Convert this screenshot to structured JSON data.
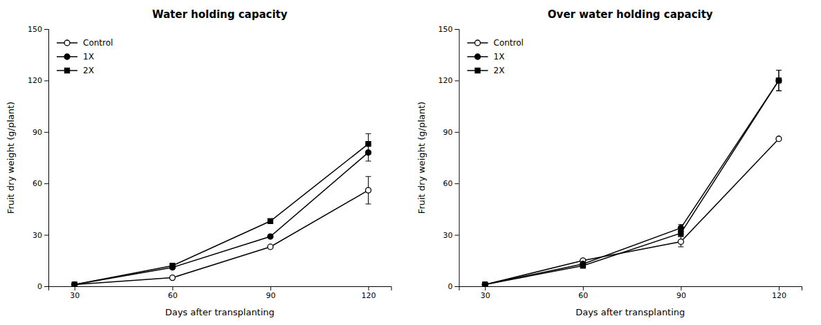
{
  "chart_data": [
    {
      "type": "line",
      "title": "Water holding capacity",
      "xlabel": "Days after transplanting",
      "ylabel": "Fruit dry weight (g/plant)",
      "x": [
        30,
        60,
        90,
        120
      ],
      "xlim": [
        22,
        127
      ],
      "xticks": [
        30,
        60,
        90,
        120
      ],
      "ylim": [
        0,
        150
      ],
      "yticks": [
        0,
        30,
        60,
        90,
        120,
        150
      ],
      "grid": false,
      "legend": "upper left",
      "series": [
        {
          "name": "Control",
          "color": "black",
          "marker": "circle-open",
          "line_style": "solid",
          "values": [
            1,
            5,
            23,
            56
          ],
          "yerr": [
            0,
            0,
            0,
            8
          ]
        },
        {
          "name": "1X",
          "color": "black",
          "marker": "circle",
          "line_style": "solid",
          "values": [
            1,
            11,
            29,
            78
          ],
          "yerr": [
            0,
            0,
            0,
            5
          ]
        },
        {
          "name": "2X",
          "color": "black",
          "marker": "square",
          "line_style": "solid",
          "values": [
            1,
            12,
            38,
            83
          ],
          "yerr": [
            0,
            0,
            0,
            6
          ]
        }
      ]
    },
    {
      "type": "line",
      "title": "Over water holding capacity",
      "xlabel": "Days after transplanting",
      "ylabel": "Fruit dry weight (g/plant)",
      "x": [
        30,
        60,
        90,
        120
      ],
      "xlim": [
        22,
        127
      ],
      "xticks": [
        30,
        60,
        90,
        120
      ],
      "ylim": [
        0,
        150
      ],
      "yticks": [
        0,
        30,
        60,
        90,
        120,
        150
      ],
      "grid": false,
      "legend": "upper left",
      "series": [
        {
          "name": "Control",
          "color": "black",
          "marker": "circle-open",
          "line_style": "solid",
          "values": [
            1,
            15,
            26,
            86
          ],
          "yerr": [
            0,
            0,
            3,
            0
          ]
        },
        {
          "name": "1X",
          "color": "black",
          "marker": "circle",
          "line_style": "solid",
          "values": [
            1,
            13,
            34,
            120
          ],
          "yerr": [
            0,
            0,
            2,
            6
          ]
        },
        {
          "name": "2X",
          "color": "black",
          "marker": "square",
          "line_style": "solid",
          "values": [
            1,
            12,
            31,
            120
          ],
          "yerr": [
            0,
            0,
            2,
            6
          ]
        }
      ]
    }
  ]
}
